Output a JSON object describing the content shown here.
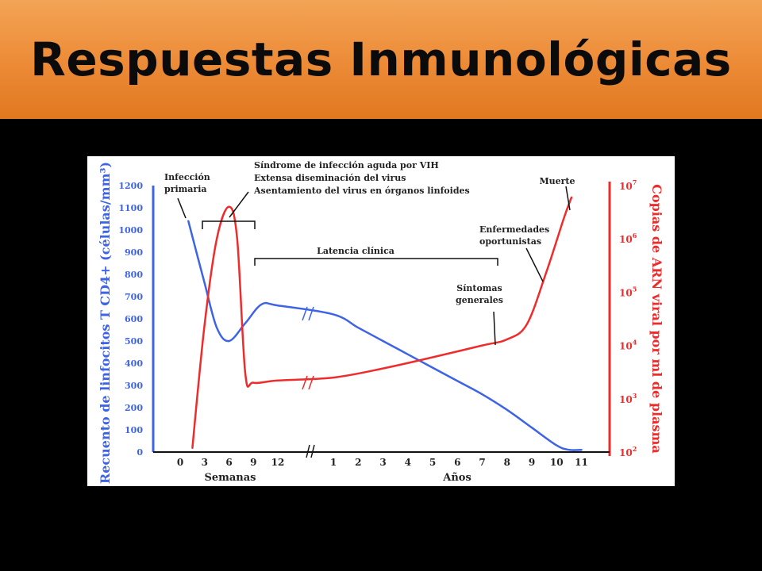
{
  "slide": {
    "title": "Respuestas Inmunológicas"
  },
  "colors": {
    "cd4": "#3d63e6",
    "rna": "#ee2c2c",
    "title_bg": "#ec8a36",
    "text": "#222222"
  },
  "chart_data": {
    "type": "line",
    "left_axis": {
      "label": "Recuento de linfocitos T CD4+ (células/mm³)",
      "ticks": [
        "0",
        "100",
        "200",
        "300",
        "400",
        "500",
        "600",
        "700",
        "800",
        "900",
        "1000",
        "1100",
        "1200"
      ],
      "ylim": [
        0,
        1200
      ]
    },
    "right_axis": {
      "label": "Copias de ARN viral por ml de plasma",
      "scale": "log",
      "ticks": [
        {
          "base": "10",
          "exp": "2"
        },
        {
          "base": "10",
          "exp": "3"
        },
        {
          "base": "10",
          "exp": "4"
        },
        {
          "base": "10",
          "exp": "5"
        },
        {
          "base": "10",
          "exp": "6"
        },
        {
          "base": "10",
          "exp": "7"
        }
      ],
      "ylim": [
        100,
        10000000
      ]
    },
    "x_axis": {
      "weeks_label": "Semanas",
      "years_label": "Años",
      "weeks_ticks": [
        "0",
        "3",
        "6",
        "9",
        "12"
      ],
      "years_ticks": [
        "1",
        "2",
        "3",
        "4",
        "5",
        "6",
        "7",
        "8",
        "9",
        "10",
        "11"
      ]
    },
    "series": [
      {
        "key": "cd4",
        "points": [
          {
            "seg": "weeks",
            "x": 1,
            "y": 1040
          },
          {
            "seg": "weeks",
            "x": 3,
            "y": 760
          },
          {
            "seg": "weeks",
            "x": 4.5,
            "y": 560
          },
          {
            "seg": "weeks",
            "x": 6,
            "y": 500
          },
          {
            "seg": "weeks",
            "x": 8,
            "y": 580
          },
          {
            "seg": "weeks",
            "x": 10,
            "y": 665
          },
          {
            "seg": "weeks",
            "x": 12,
            "y": 660
          },
          {
            "seg": "years",
            "x": 1,
            "y": 620
          },
          {
            "seg": "years",
            "x": 2,
            "y": 560
          },
          {
            "seg": "years",
            "x": 3,
            "y": 500
          },
          {
            "seg": "years",
            "x": 4,
            "y": 440
          },
          {
            "seg": "years",
            "x": 5,
            "y": 380
          },
          {
            "seg": "years",
            "x": 6,
            "y": 320
          },
          {
            "seg": "years",
            "x": 7,
            "y": 260
          },
          {
            "seg": "years",
            "x": 8,
            "y": 190
          },
          {
            "seg": "years",
            "x": 9,
            "y": 110
          },
          {
            "seg": "years",
            "x": 10,
            "y": 30
          },
          {
            "seg": "years",
            "x": 10.5,
            "y": 10
          },
          {
            "seg": "years",
            "x": 11,
            "y": 10
          }
        ]
      },
      {
        "key": "rna",
        "points": [
          {
            "seg": "weeks",
            "x": 1.5,
            "y": 120
          },
          {
            "seg": "weeks",
            "x": 3,
            "y": 25000
          },
          {
            "seg": "weeks",
            "x": 4.5,
            "y": 1000000
          },
          {
            "seg": "weeks",
            "x": 6,
            "y": 4000000
          },
          {
            "seg": "weeks",
            "x": 7,
            "y": 1000000
          },
          {
            "seg": "weeks",
            "x": 8,
            "y": 3000
          },
          {
            "seg": "weeks",
            "x": 9,
            "y": 2000
          },
          {
            "seg": "weeks",
            "x": 12,
            "y": 2200
          },
          {
            "seg": "years",
            "x": 1,
            "y": 2500
          },
          {
            "seg": "years",
            "x": 3,
            "y": 3700
          },
          {
            "seg": "years",
            "x": 5,
            "y": 6000
          },
          {
            "seg": "years",
            "x": 7,
            "y": 10000
          },
          {
            "seg": "years",
            "x": 8,
            "y": 13000
          },
          {
            "seg": "years",
            "x": 8.8,
            "y": 25000
          },
          {
            "seg": "years",
            "x": 9.6,
            "y": 250000
          },
          {
            "seg": "years",
            "x": 10.3,
            "y": 2500000
          },
          {
            "seg": "years",
            "x": 10.6,
            "y": 6000000
          }
        ]
      }
    ],
    "annotations": {
      "infeccion_primaria": [
        "Infección",
        "primaria"
      ],
      "sindrome": [
        "Síndrome de infección aguda por VIH",
        "Extensa diseminación del virus",
        "Asentamiento del virus en órganos linfoides"
      ],
      "latencia": "Latencia clínica",
      "sintomas": [
        "Síntomas",
        "generales"
      ],
      "enfermedades": [
        "Enfermedades",
        "oportunistas"
      ],
      "muerte": "Muerte"
    }
  }
}
